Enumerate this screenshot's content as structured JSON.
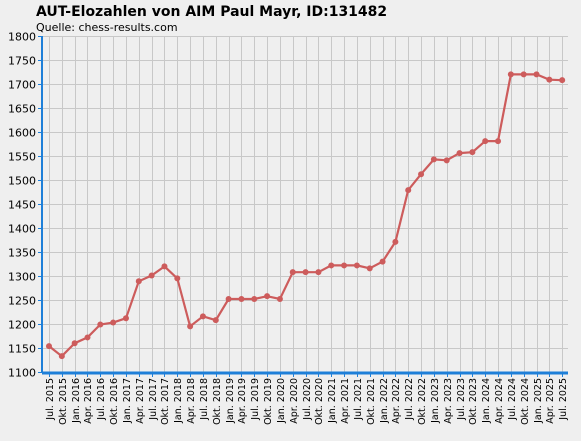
{
  "chart_data": {
    "type": "line",
    "title": "AUT-Elozahlen von AIM Paul Mayr, ID:131482",
    "subtitle": "Quelle: chess-results.com",
    "ylim": [
      1100,
      1800
    ],
    "y_ticks": [
      1100,
      1150,
      1200,
      1250,
      1300,
      1350,
      1400,
      1450,
      1500,
      1550,
      1600,
      1650,
      1700,
      1750,
      1800
    ],
    "grid": true,
    "x": [
      "Jul. 2015",
      "Okt. 2015",
      "Jan. 2016",
      "Apr. 2016",
      "Jul. 2016",
      "Okt. 2016",
      "Jan. 2017",
      "Apr. 2017",
      "Jul. 2017",
      "Okt. 2017",
      "Jan. 2018",
      "Apr. 2018",
      "Jul. 2018",
      "Okt. 2018",
      "Jan. 2019",
      "Apr. 2019",
      "Jul. 2019",
      "Okt. 2019",
      "Jan. 2020",
      "Apr. 2020",
      "Jul. 2020",
      "Okt. 2020",
      "Jan. 2021",
      "Apr. 2021",
      "Jul. 2021",
      "Okt. 2021",
      "Jan. 2022",
      "Apr. 2022",
      "Jul. 2022",
      "Okt. 2022",
      "Jan. 2023",
      "Apr. 2023",
      "Jul. 2023",
      "Okt. 2023",
      "Jan. 2024",
      "Apr. 2024",
      "Jul. 2024",
      "Okt. 2024",
      "Jan. 2025",
      "Apr. 2025",
      "Jul. 2025"
    ],
    "values": [
      1154,
      1133,
      1160,
      1172,
      1199,
      1203,
      1212,
      1289,
      1301,
      1320,
      1295,
      1195,
      1216,
      1208,
      1252,
      1252,
      1252,
      1258,
      1252,
      1308,
      1308,
      1308,
      1322,
      1322,
      1322,
      1316,
      1330,
      1371,
      1479,
      1512,
      1543,
      1541,
      1556,
      1558,
      1581,
      1581,
      1720,
      1720,
      1720,
      1709,
      1708
    ],
    "colors": {
      "line": "#cd5c5c",
      "axis": "#1e7fd8",
      "grid": "#c8c8c8",
      "background": "#efefef"
    }
  }
}
